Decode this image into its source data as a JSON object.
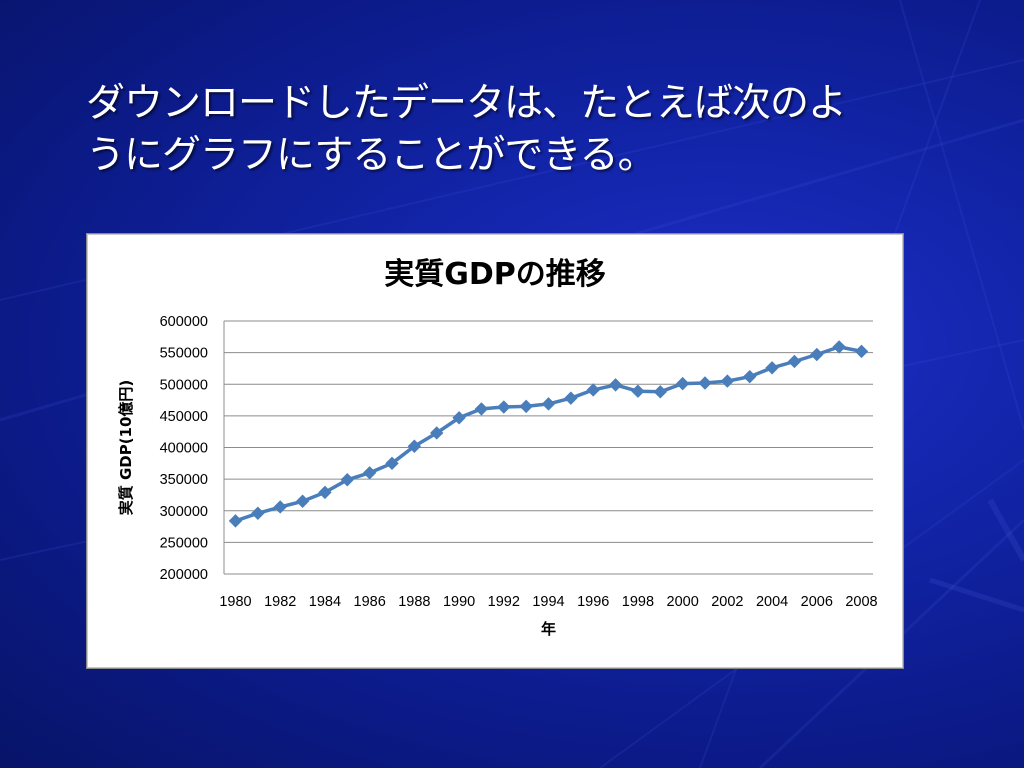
{
  "slide": {
    "title_line1": "ダウンロードしたデータは、たとえば次のよ",
    "title_line2": "うにグラフにすることができる。"
  },
  "colors": {
    "background": "#0b1a8f",
    "series": "#4a7ebb",
    "gridline": "#8c8c8c"
  },
  "chart_data": {
    "type": "line",
    "title": "実質GDPの推移",
    "xlabel": "年",
    "ylabel": "実質 GDP(10億円)",
    "ylim": [
      200000,
      600000
    ],
    "yticks": [
      200000,
      250000,
      300000,
      350000,
      400000,
      450000,
      500000,
      550000,
      600000
    ],
    "xtick_labels": [
      "1980",
      "1982",
      "1984",
      "1986",
      "1988",
      "1990",
      "1992",
      "1994",
      "1996",
      "1998",
      "2000",
      "2002",
      "2004",
      "2006",
      "2008"
    ],
    "grid": true,
    "legend": "none",
    "marker": "diamond",
    "x": [
      1980,
      1981,
      1982,
      1983,
      1984,
      1985,
      1986,
      1987,
      1988,
      1989,
      1990,
      1991,
      1992,
      1993,
      1994,
      1995,
      1996,
      1997,
      1998,
      1999,
      2000,
      2001,
      2002,
      2003,
      2004,
      2005,
      2006,
      2007,
      2008
    ],
    "series": [
      {
        "values": [
          284000,
          296000,
          306000,
          315000,
          329000,
          349000,
          360000,
          375000,
          402000,
          423000,
          447000,
          461000,
          464000,
          465000,
          469000,
          478000,
          491000,
          499000,
          489000,
          488000,
          501000,
          502000,
          505000,
          512000,
          526000,
          536000,
          547000,
          559000,
          552000
        ]
      }
    ]
  }
}
